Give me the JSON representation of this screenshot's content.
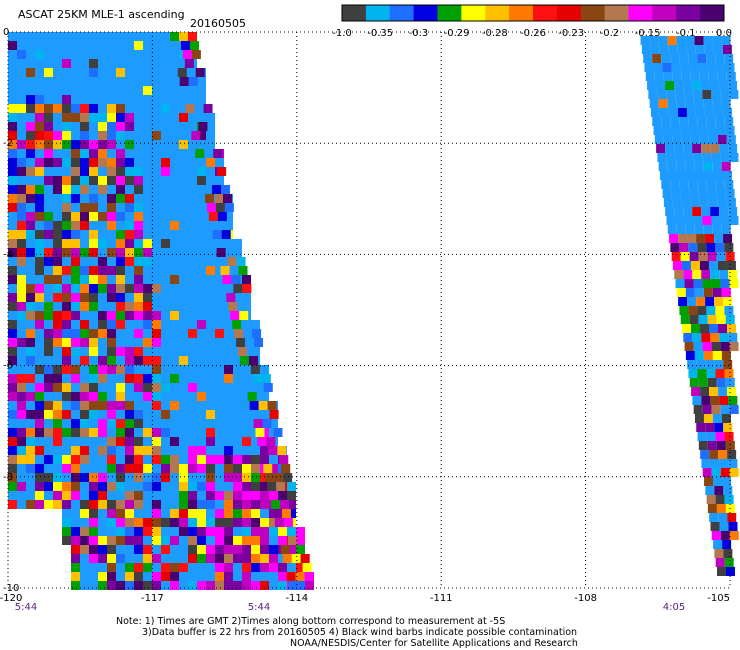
{
  "title": "ASCAT 25KM MLE-1 ascending",
  "date": "20160505",
  "colorbar": {
    "labels": [
      "-1.0",
      "-0.35",
      "-0.3",
      "-0.29",
      "-0.28",
      "-0.26",
      "-0.23",
      "-0.2",
      "-0.15",
      "-0.1",
      "0.0"
    ],
    "colors": [
      "#404040",
      "#00b4f0",
      "#1e6eff",
      "#0000e0",
      "#00a000",
      "#ffff00",
      "#ffc000",
      "#ff7a00",
      "#ff1010",
      "#e60000",
      "#8b4513",
      "#b47850",
      "#ff00ff",
      "#c000c0",
      "#7a00a0",
      "#4a0070"
    ]
  },
  "axes": {
    "x_ticks": [
      "-120",
      "-117",
      "-114",
      "-111",
      "-108",
      "-105"
    ],
    "y_ticks": [
      "0",
      "-2",
      "-4",
      "-6",
      "-8",
      "-10"
    ],
    "x_range": [
      -120,
      -105
    ],
    "y_range": [
      -10,
      0
    ]
  },
  "pass_times": [
    "5:44",
    "5:44",
    "4:05"
  ],
  "notes": [
    "Note: 1) Times are GMT 2)Times along bottom correspond to measurement at -5S",
    "3)Data buffer is 22 hrs from 20160505 4) Black wind barbs indicate possible contamination",
    "NOAA/NESDIS/Center for Satellite Applications and Research"
  ],
  "colors": {
    "swath_fill": "#1e9bff",
    "grid": "#000000",
    "time_label": "#5a1f7a"
  }
}
